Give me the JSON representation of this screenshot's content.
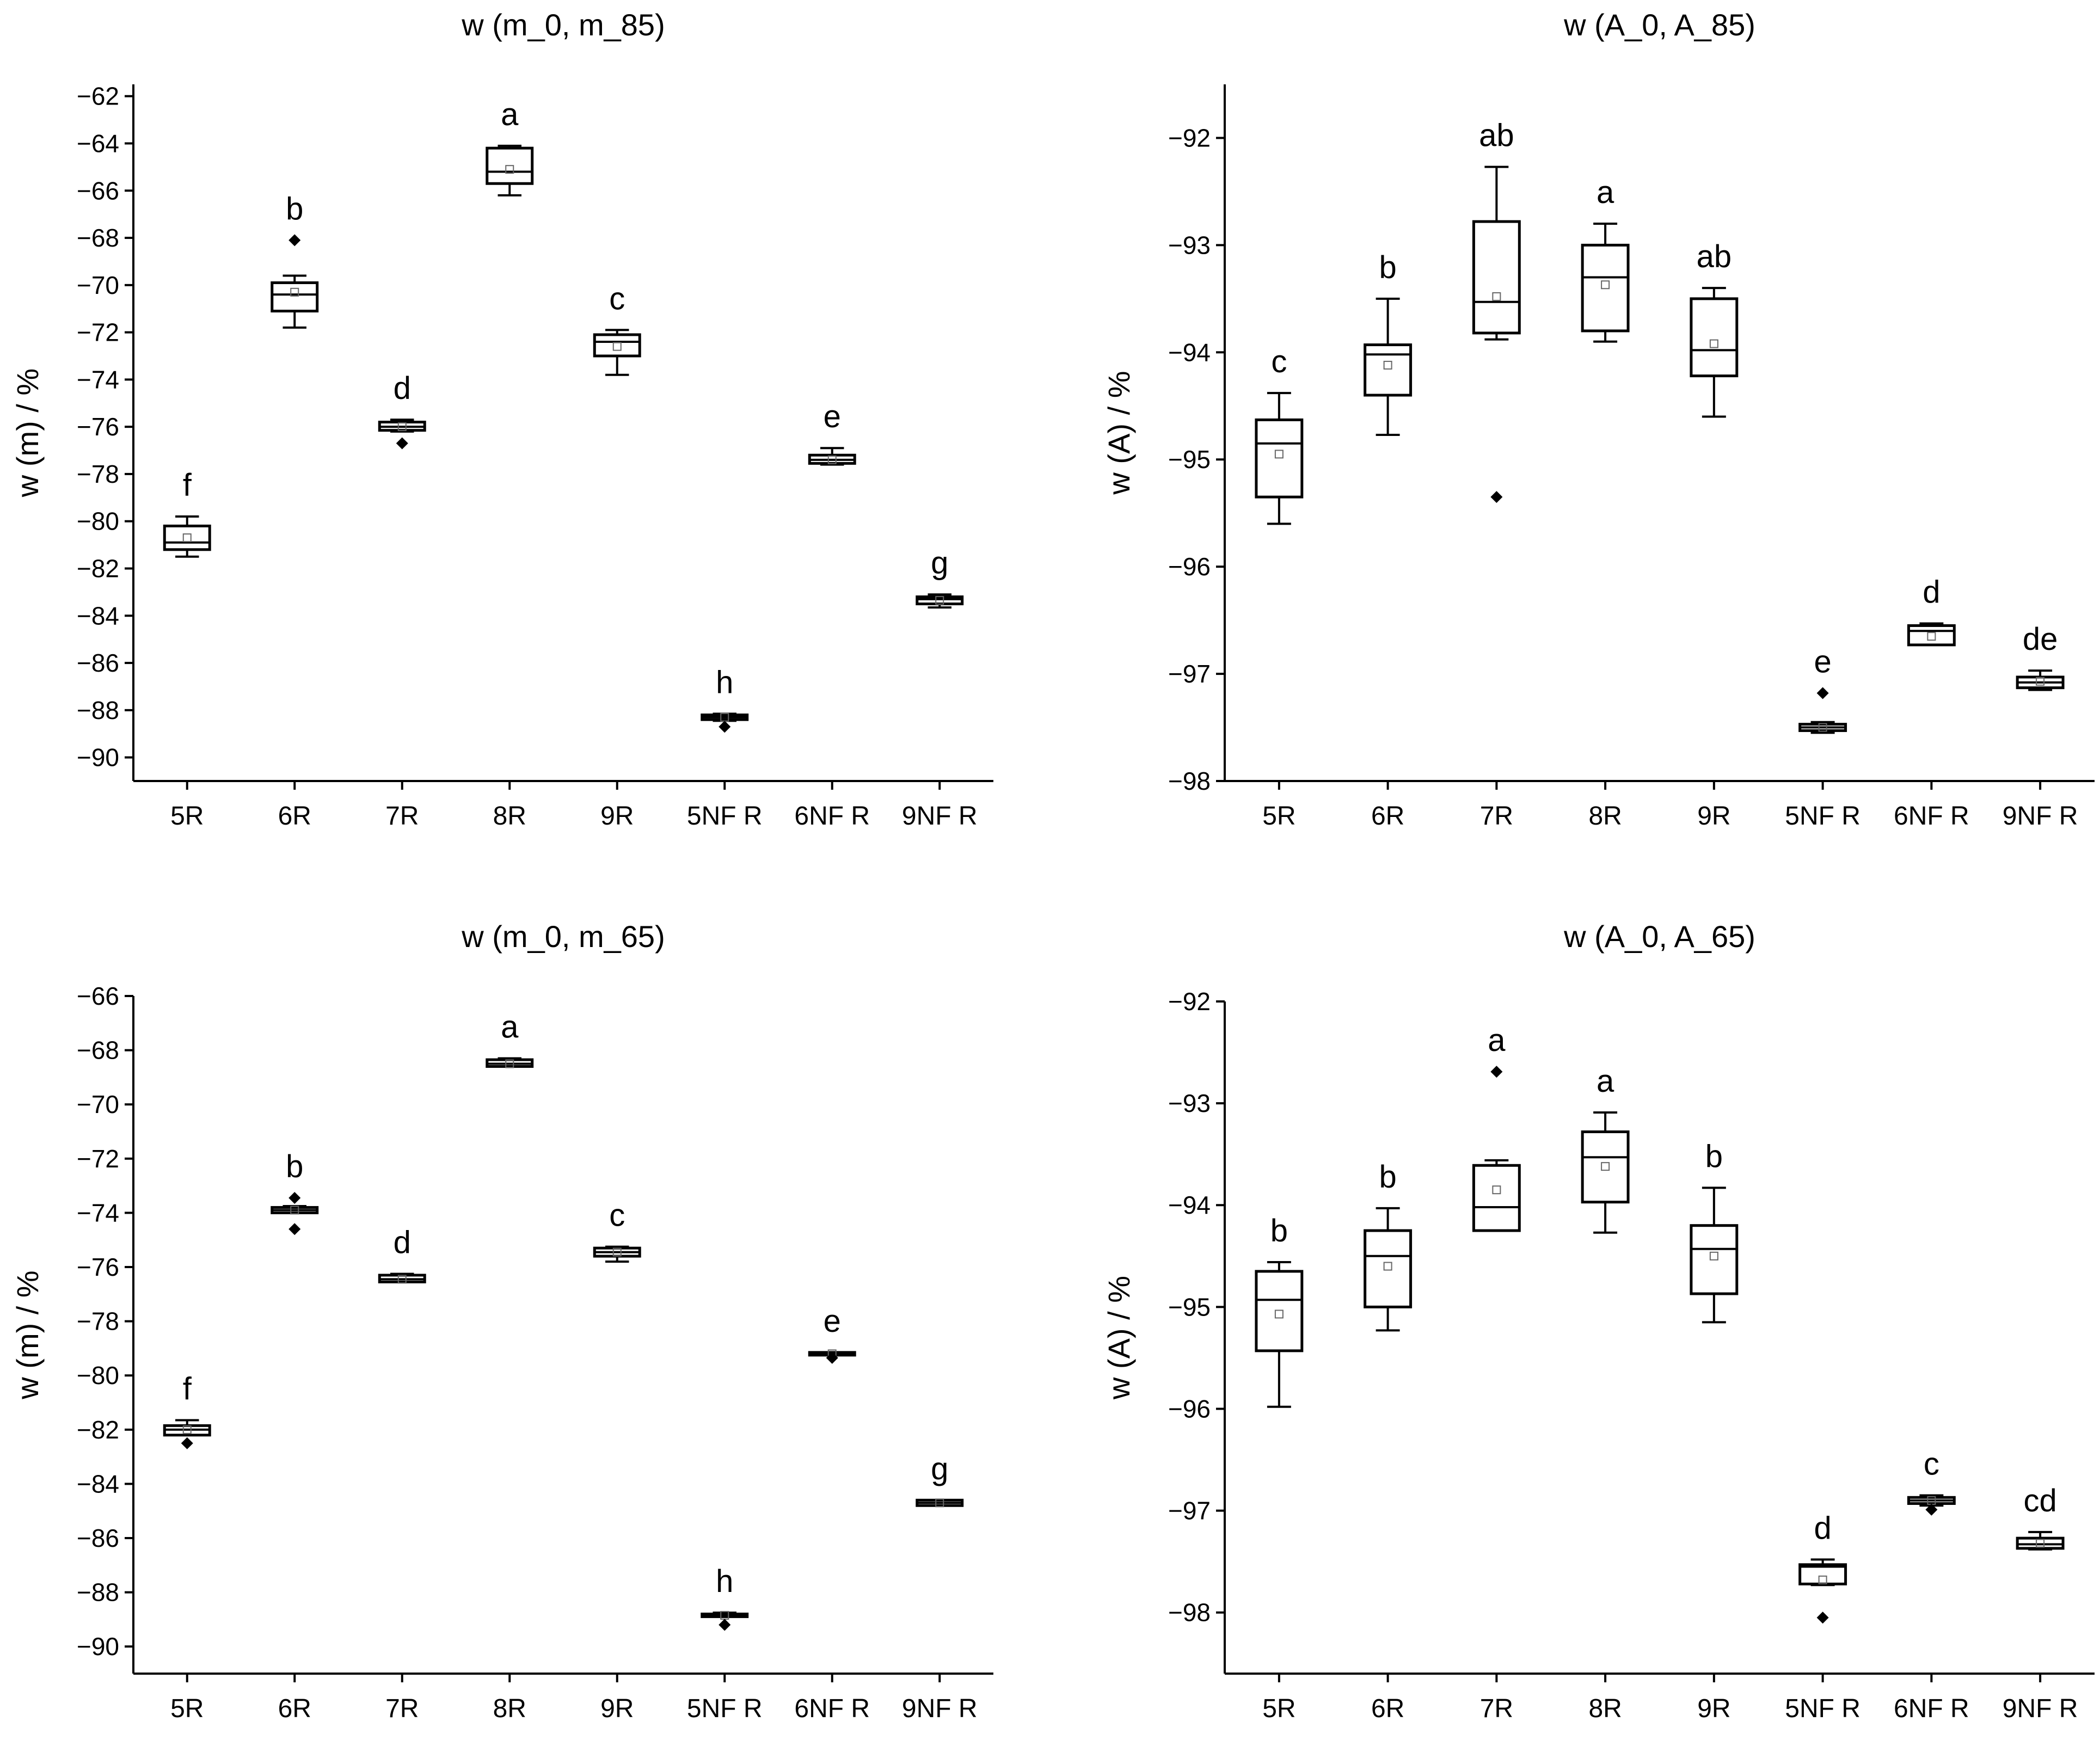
{
  "chart_data": [
    {
      "type": "box",
      "title": "w (m_0, m_85)",
      "xlabel": "",
      "ylabel": "w (m) / %",
      "ylim": [
        -91,
        -61.5
      ],
      "yticks": [
        -62,
        -64,
        -66,
        -68,
        -70,
        -72,
        -74,
        -76,
        -78,
        -80,
        -82,
        -84,
        -86,
        -88,
        -90
      ],
      "categories": [
        "5R",
        "6R",
        "7R",
        "8R",
        "9R",
        "5NF R",
        "6NF R",
        "9NF R"
      ],
      "boxes": [
        {
          "min": -81.5,
          "q1": -81.2,
          "median": -80.9,
          "q3": -80.2,
          "max": -79.8,
          "mean": -80.7,
          "outliers": [],
          "letter": "f"
        },
        {
          "min": -71.8,
          "q1": -71.1,
          "median": -70.4,
          "q3": -69.9,
          "max": -69.6,
          "mean": -70.3,
          "outliers": [
            -68.1
          ],
          "letter": "b"
        },
        {
          "min": -76.2,
          "q1": -76.15,
          "median": -76.0,
          "q3": -75.8,
          "max": -75.7,
          "mean": -76.0,
          "outliers": [
            -76.7
          ],
          "letter": "d"
        },
        {
          "min": -66.2,
          "q1": -65.7,
          "median": -65.2,
          "q3": -64.2,
          "max": -64.1,
          "mean": -65.1,
          "outliers": [],
          "letter": "a"
        },
        {
          "min": -73.8,
          "q1": -73.0,
          "median": -72.4,
          "q3": -72.1,
          "max": -71.9,
          "mean": -72.6,
          "outliers": [],
          "letter": "c"
        },
        {
          "min": -88.45,
          "q1": -88.4,
          "median": -88.3,
          "q3": -88.2,
          "max": -88.15,
          "mean": -88.3,
          "outliers": [
            -88.7
          ],
          "letter": "h"
        },
        {
          "min": -77.6,
          "q1": -77.55,
          "median": -77.4,
          "q3": -77.2,
          "max": -76.9,
          "mean": -77.4,
          "outliers": [],
          "letter": "e"
        },
        {
          "min": -83.65,
          "q1": -83.5,
          "median": -83.3,
          "q3": -83.2,
          "max": -83.1,
          "mean": -83.35,
          "outliers": [],
          "letter": "g"
        }
      ]
    },
    {
      "type": "box",
      "title": "w (A_0, A_85)",
      "xlabel": "",
      "ylabel": "w (A) / %",
      "ylim": [
        -98,
        -91.5
      ],
      "yticks": [
        -92,
        -93,
        -94,
        -95,
        -96,
        -97,
        -98
      ],
      "categories": [
        "5R",
        "6R",
        "7R",
        "8R",
        "9R",
        "5NF R",
        "6NF R",
        "9NF R"
      ],
      "boxes": [
        {
          "min": -95.6,
          "q1": -95.35,
          "median": -94.85,
          "q3": -94.63,
          "max": -94.38,
          "mean": -94.95,
          "outliers": [],
          "letter": "c"
        },
        {
          "min": -94.77,
          "q1": -94.4,
          "median": -94.02,
          "q3": -93.93,
          "max": -93.5,
          "mean": -94.12,
          "outliers": [],
          "letter": "b"
        },
        {
          "min": -93.88,
          "q1": -93.82,
          "median": -93.53,
          "q3": -92.78,
          "max": -92.27,
          "mean": -93.48,
          "outliers": [
            -95.35
          ],
          "letter": "ab"
        },
        {
          "min": -93.9,
          "q1": -93.8,
          "median": -93.3,
          "q3": -93.0,
          "max": -92.8,
          "mean": -93.37,
          "outliers": [],
          "letter": "a"
        },
        {
          "min": -94.6,
          "q1": -94.22,
          "median": -93.98,
          "q3": -93.5,
          "max": -93.4,
          "mean": -93.92,
          "outliers": [],
          "letter": "ab"
        },
        {
          "min": -97.55,
          "q1": -97.53,
          "median": -97.5,
          "q3": -97.47,
          "max": -97.45,
          "mean": -97.5,
          "outliers": [
            -97.18
          ],
          "letter": "e"
        },
        {
          "min": -96.73,
          "q1": -96.73,
          "median": -96.6,
          "q3": -96.55,
          "max": -96.53,
          "mean": -96.65,
          "outliers": [],
          "letter": "d"
        },
        {
          "min": -97.15,
          "q1": -97.13,
          "median": -97.08,
          "q3": -97.03,
          "max": -96.97,
          "mean": -97.07,
          "outliers": [],
          "letter": "de"
        }
      ]
    },
    {
      "type": "box",
      "title": "w (m_0, m_65)",
      "xlabel": "",
      "ylabel": "w (m) / %",
      "ylim": [
        -91,
        -66
      ],
      "yticks": [
        -66,
        -68,
        -70,
        -72,
        -74,
        -76,
        -78,
        -80,
        -82,
        -84,
        -86,
        -88,
        -90
      ],
      "categories": [
        "5R",
        "6R",
        "7R",
        "8R",
        "9R",
        "5NF R",
        "6NF R",
        "9NF R"
      ],
      "boxes": [
        {
          "min": -82.2,
          "q1": -82.2,
          "median": -82.0,
          "q3": -81.85,
          "max": -81.65,
          "mean": -82.0,
          "outliers": [
            -82.5
          ],
          "letter": "f"
        },
        {
          "min": -74.0,
          "q1": -74.0,
          "median": -73.9,
          "q3": -73.8,
          "max": -73.75,
          "mean": -73.9,
          "outliers": [
            -73.45,
            -74.6
          ],
          "letter": "b"
        },
        {
          "min": -76.55,
          "q1": -76.55,
          "median": -76.45,
          "q3": -76.3,
          "max": -76.25,
          "mean": -76.45,
          "outliers": [],
          "letter": "d"
        },
        {
          "min": -68.6,
          "q1": -68.6,
          "median": -68.5,
          "q3": -68.35,
          "max": -68.3,
          "mean": -68.5,
          "outliers": [],
          "letter": "a"
        },
        {
          "min": -75.8,
          "q1": -75.6,
          "median": -75.45,
          "q3": -75.3,
          "max": -75.25,
          "mean": -75.45,
          "outliers": [],
          "letter": "c"
        },
        {
          "min": -88.9,
          "q1": -88.9,
          "median": -88.85,
          "q3": -88.8,
          "max": -88.75,
          "mean": -88.85,
          "outliers": [
            -89.2
          ],
          "letter": "h"
        },
        {
          "min": -79.25,
          "q1": -79.25,
          "median": -79.2,
          "q3": -79.15,
          "max": -79.15,
          "mean": -79.2,
          "outliers": [
            -79.35
          ],
          "letter": "e"
        },
        {
          "min": -84.8,
          "q1": -84.8,
          "median": -84.7,
          "q3": -84.6,
          "max": -84.6,
          "mean": -84.7,
          "outliers": [],
          "letter": "g"
        }
      ]
    },
    {
      "type": "box",
      "title": "w (A_0, A_65)",
      "xlabel": "",
      "ylabel": "w (A) / %",
      "ylim": [
        -98.6,
        -92
      ],
      "yticks": [
        -92,
        -93,
        -94,
        -95,
        -96,
        -97,
        -98
      ],
      "categories": [
        "5R",
        "6R",
        "7R",
        "8R",
        "9R",
        "5NF R",
        "6NF R",
        "9NF R"
      ],
      "boxes": [
        {
          "min": -95.98,
          "q1": -95.43,
          "median": -94.93,
          "q3": -94.65,
          "max": -94.56,
          "mean": -95.07,
          "outliers": [],
          "letter": "b"
        },
        {
          "min": -95.23,
          "q1": -95.0,
          "median": -94.5,
          "q3": -94.25,
          "max": -94.03,
          "mean": -94.6,
          "outliers": [],
          "letter": "b"
        },
        {
          "min": -94.25,
          "q1": -94.25,
          "median": -94.02,
          "q3": -93.61,
          "max": -93.56,
          "mean": -93.85,
          "outliers": [
            -92.69
          ],
          "letter": "a"
        },
        {
          "min": -94.27,
          "q1": -93.97,
          "median": -93.53,
          "q3": -93.28,
          "max": -93.09,
          "mean": -93.62,
          "outliers": [],
          "letter": "a"
        },
        {
          "min": -95.15,
          "q1": -94.87,
          "median": -94.43,
          "q3": -94.2,
          "max": -93.83,
          "mean": -94.5,
          "outliers": [],
          "letter": "b"
        },
        {
          "min": -97.73,
          "q1": -97.72,
          "median": -97.55,
          "q3": -97.53,
          "max": -97.48,
          "mean": -97.68,
          "outliers": [
            -98.05
          ],
          "letter": "d"
        },
        {
          "min": -96.95,
          "q1": -96.93,
          "median": -96.9,
          "q3": -96.87,
          "max": -96.85,
          "mean": -96.9,
          "outliers": [
            -96.99
          ],
          "letter": "c"
        },
        {
          "min": -97.38,
          "q1": -97.37,
          "median": -97.33,
          "q3": -97.27,
          "max": -97.21,
          "mean": -97.32,
          "outliers": [],
          "letter": "cd"
        }
      ]
    }
  ]
}
